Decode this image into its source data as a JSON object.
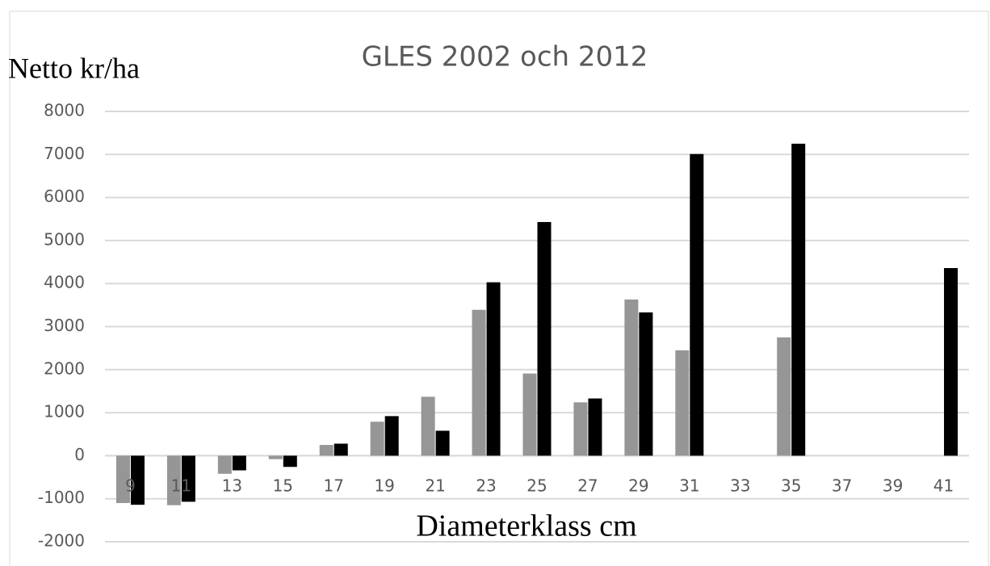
{
  "chart_data": {
    "type": "bar",
    "title": "GLES 2002 och 2012",
    "y_label": "Netto kr/ha",
    "x_label": "Diameterklass cm",
    "categories": [
      "9",
      "11",
      "13",
      "15",
      "17",
      "19",
      "21",
      "23",
      "25",
      "27",
      "29",
      "31",
      "33",
      "35",
      "37",
      "39",
      "41"
    ],
    "series": [
      {
        "color": "#969696",
        "values": [
          -1100,
          -1150,
          -420,
          -80,
          250,
          790,
          1370,
          3390,
          1910,
          1240,
          3630,
          2450,
          null,
          2750,
          null,
          null,
          null
        ]
      },
      {
        "color": "#000000",
        "values": [
          -1140,
          -1070,
          -340,
          -260,
          280,
          920,
          580,
          4030,
          5430,
          1330,
          3330,
          7010,
          null,
          7250,
          null,
          null,
          4360
        ]
      }
    ],
    "ylim": [
      -2000,
      8000
    ],
    "yticks": [
      -2000,
      -1000,
      0,
      1000,
      2000,
      3000,
      4000,
      5000,
      6000,
      7000,
      8000
    ],
    "grid": true
  }
}
